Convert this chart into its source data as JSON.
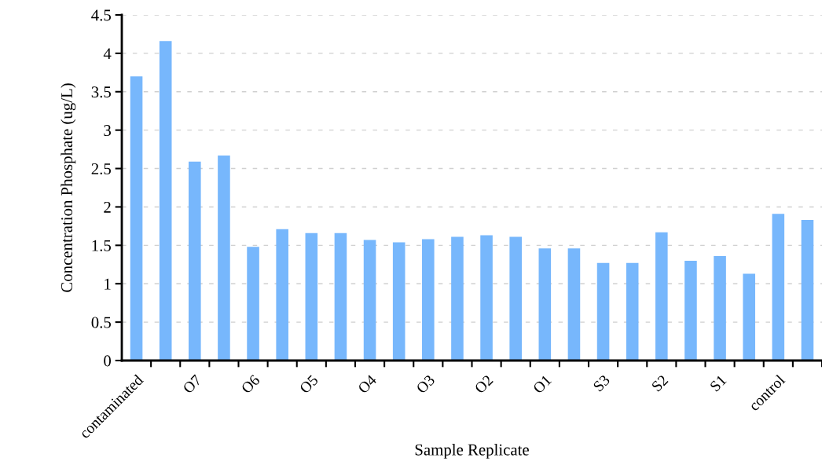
{
  "chart_data": {
    "type": "bar",
    "xlabel": "Sample Replicate",
    "ylabel": "Concentration Phosphate (ug/L)",
    "categories": [
      "contaminated",
      null,
      "O7",
      null,
      "O6",
      null,
      "O5",
      null,
      "O4",
      null,
      "O3",
      null,
      "O2",
      null,
      "O1",
      null,
      "S3",
      null,
      "S2",
      null,
      "S1",
      null,
      "control",
      null
    ],
    "values": [
      3.7,
      4.16,
      2.59,
      2.67,
      1.48,
      1.71,
      1.66,
      1.66,
      1.57,
      1.54,
      1.58,
      1.61,
      1.63,
      1.61,
      1.46,
      1.46,
      1.27,
      1.27,
      1.67,
      1.3,
      1.36,
      1.13,
      1.91,
      1.83
    ],
    "color": "#77b7fc",
    "ylim": [
      0,
      4.5
    ],
    "yticks": [
      0,
      0.5,
      1,
      1.5,
      2,
      2.5,
      3,
      3.5,
      4,
      4.5
    ],
    "grid": "y"
  }
}
